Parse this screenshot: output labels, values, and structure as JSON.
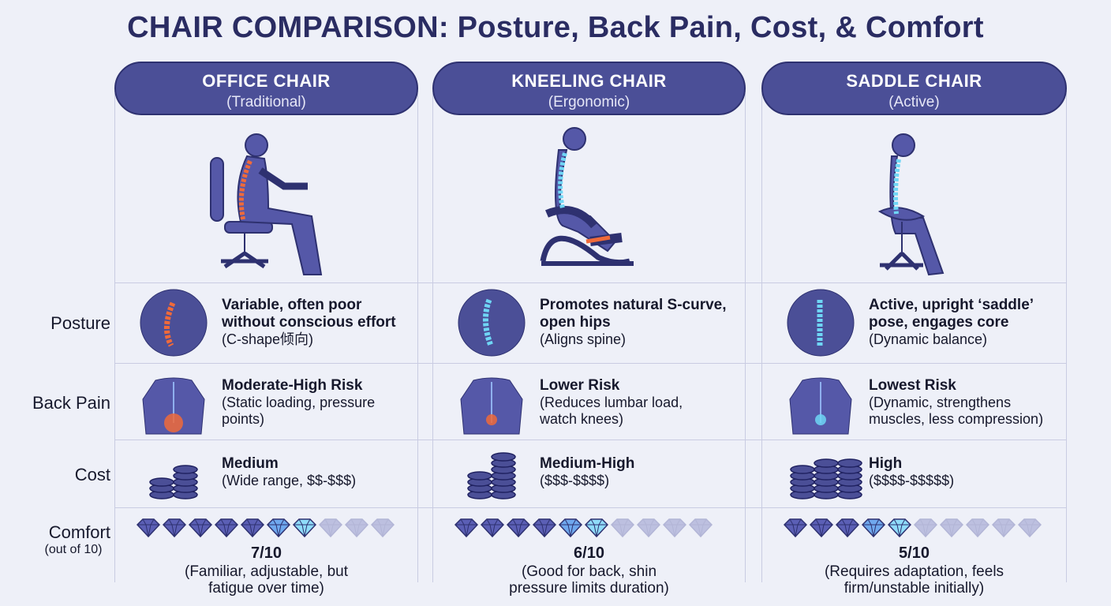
{
  "title": "CHAIR COMPARISON: Posture, Back Pain, Cost, & Comfort",
  "row_labels": {
    "posture": "Posture",
    "back_pain": "Back Pain",
    "cost": "Cost",
    "comfort": "Comfort",
    "comfort_sub": "(out of 10)"
  },
  "colors": {
    "pill": "#4b4f97",
    "figure": "#5558a8",
    "highlight_poor": "#f06a3a",
    "highlight_good": "#6fd6f5"
  },
  "chairs": [
    {
      "name": "OFFICE CHAIR",
      "type": "(Traditional)",
      "posture_main": "Variable, often poor without conscious effort",
      "posture_note": "(C-shape倾向)",
      "pain_main": "Moderate-High Risk",
      "pain_note": "(Static loading, pressure points)",
      "cost_main": "Medium",
      "cost_note": "(Wide range, $$-$$$)",
      "comfort_score": "7/10",
      "comfort_value": 7,
      "comfort_note": "(Familiar, adjustable, but fatigue over time)",
      "coin_stacks": 2
    },
    {
      "name": "KNEELING CHAIR",
      "type": "(Ergonomic)",
      "posture_main": "Promotes natural S-curve, open hips",
      "posture_note": "(Aligns spine)",
      "pain_main": "Lower Risk",
      "pain_note": "(Reduces lumbar load, watch knees)",
      "cost_main": "Medium-High",
      "cost_note": "($$$-$$$$)",
      "comfort_score": "6/10",
      "comfort_value": 6,
      "comfort_note": "(Good for back, shin pressure limits duration)",
      "coin_stacks": 2
    },
    {
      "name": "SADDLE CHAIR",
      "type": "(Active)",
      "posture_main": "Active, upright ‘saddle’ pose, engages core",
      "posture_note": "(Dynamic balance)",
      "pain_main": "Lowest Risk",
      "pain_note": "(Dynamic, strengthens muscles, less compression)",
      "cost_main": "High",
      "cost_note": "($$$$-$$$$$)",
      "comfort_score": "5/10",
      "comfort_value": 5,
      "comfort_note": "(Requires adaptation, feels firm/unstable initially)",
      "coin_stacks": 3
    }
  ]
}
